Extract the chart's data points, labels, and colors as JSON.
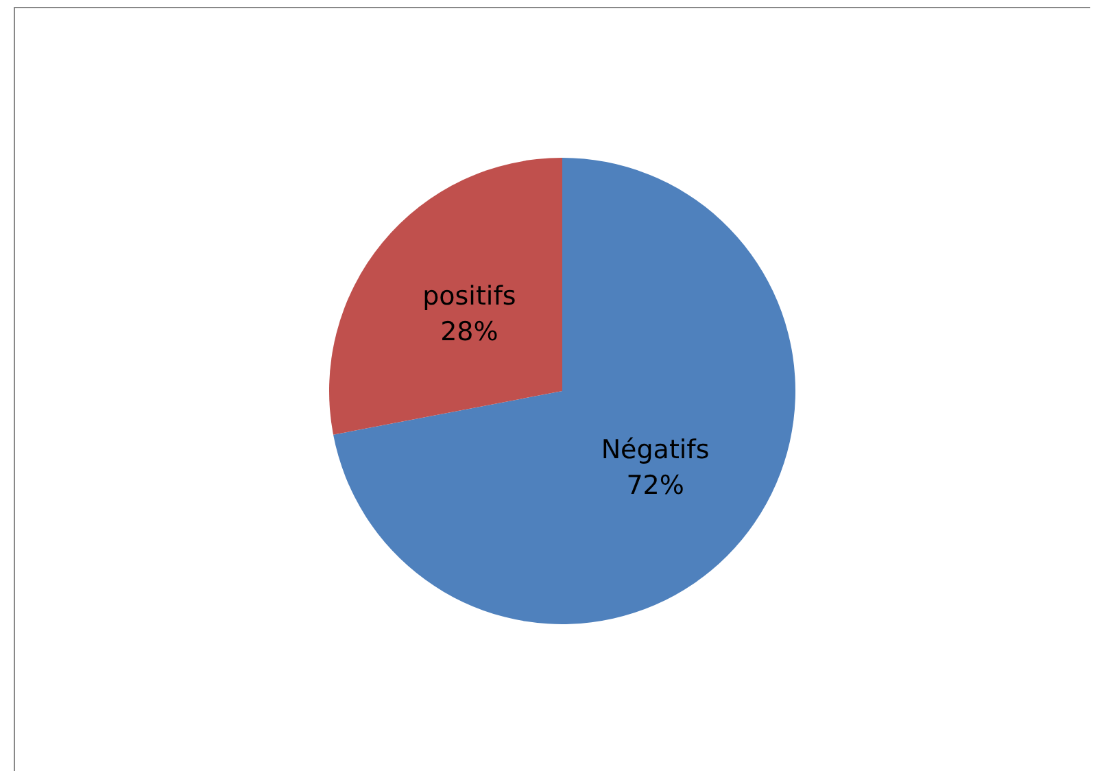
{
  "chart_data": {
    "type": "pie",
    "categories": [
      "Négatifs",
      "positifs"
    ],
    "values": [
      72,
      28
    ],
    "colors": [
      "#4f81bd",
      "#c0504d"
    ],
    "value_labels": [
      "72%",
      "28%"
    ],
    "legend": false
  }
}
